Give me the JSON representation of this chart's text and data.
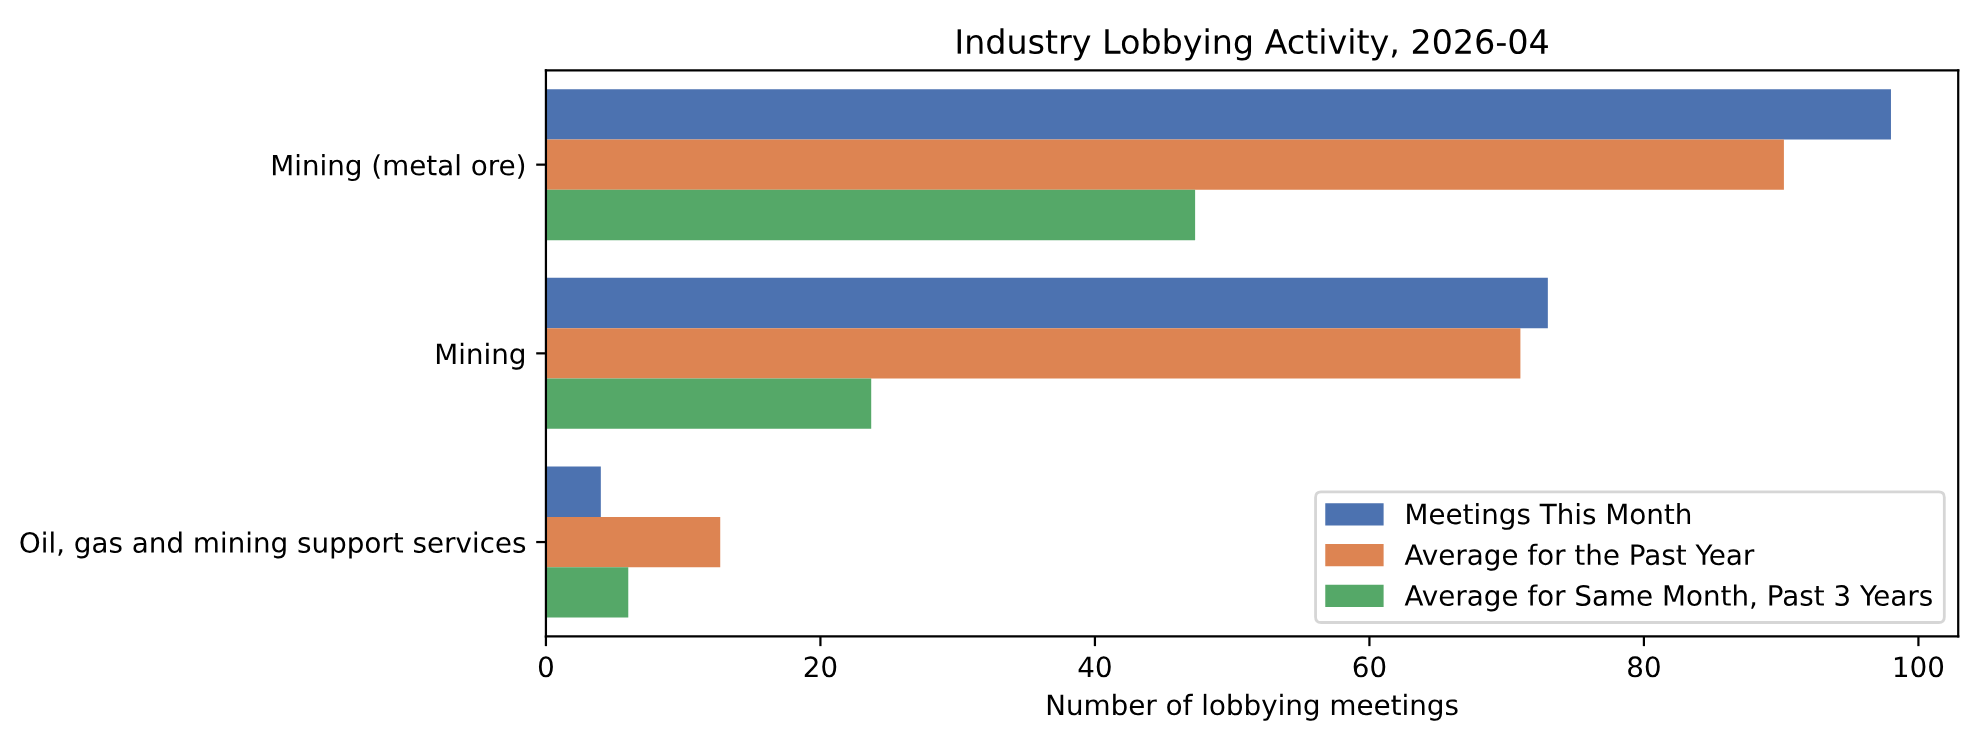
{
  "chart_data": {
    "type": "bar",
    "orientation": "horizontal",
    "title": "Industry Lobbying Activity, 2026-04",
    "xlabel": "Number of lobbying meetings",
    "categories": [
      "Mining (metal ore)",
      "Mining",
      "Oil, gas and mining support services"
    ],
    "series": [
      {
        "name": "Meetings This Month",
        "color": "#4c72b0",
        "values": [
          98,
          73,
          4
        ]
      },
      {
        "name": "Average for the Past Year",
        "color": "#dd8452",
        "values": [
          90.2,
          71.0,
          12.7
        ]
      },
      {
        "name": "Average for Same Month, Past 3 Years",
        "color": "#55a868",
        "values": [
          47.3,
          23.7,
          6.0
        ]
      }
    ],
    "xlim": [
      0,
      102.9
    ],
    "xticks": [
      0,
      20,
      40,
      60,
      80,
      100
    ],
    "grid": false,
    "legend": "lower right"
  }
}
